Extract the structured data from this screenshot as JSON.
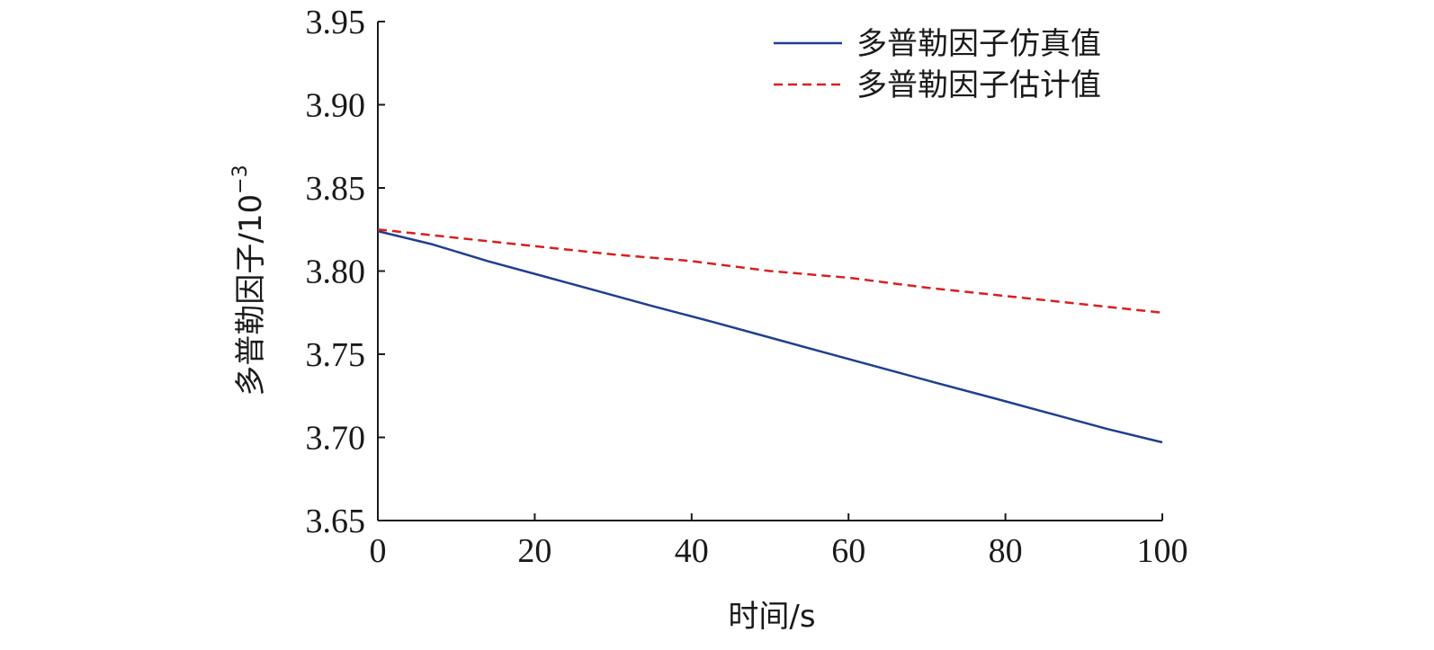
{
  "chart_data": {
    "type": "line",
    "title": "",
    "xlabel": "时间/s",
    "ylabel": "多普勒因子/10",
    "ylabel_exponent": "−3",
    "xlim": [
      0,
      100
    ],
    "ylim": [
      3.65,
      3.95
    ],
    "xticks": [
      "0",
      "20",
      "40",
      "60",
      "80",
      "100"
    ],
    "yticks": [
      "3.65",
      "3.70",
      "3.75",
      "3.80",
      "3.85",
      "3.90",
      "3.95"
    ],
    "grid": false,
    "legend_position": "top-right",
    "series": [
      {
        "name": "多普勒因子仿真值",
        "color": "#1f3f8f",
        "dash": "solid",
        "x": [
          0,
          7,
          14,
          21,
          28,
          35,
          43,
          50,
          57,
          64,
          71,
          79,
          86,
          93,
          100
        ],
        "y": [
          3.824,
          3.816,
          3.806,
          3.797,
          3.788,
          3.779,
          3.769,
          3.76,
          3.751,
          3.742,
          3.733,
          3.723,
          3.714,
          3.705,
          3.697
        ]
      },
      {
        "name": "多普勒因子估计值",
        "color": "#d62020",
        "dash": "dashed",
        "x": [
          0,
          10,
          20,
          30,
          40,
          50,
          60,
          70,
          80,
          90,
          100
        ],
        "y": [
          3.825,
          3.82,
          3.815,
          3.81,
          3.806,
          3.8,
          3.796,
          3.79,
          3.785,
          3.78,
          3.775
        ]
      }
    ]
  }
}
